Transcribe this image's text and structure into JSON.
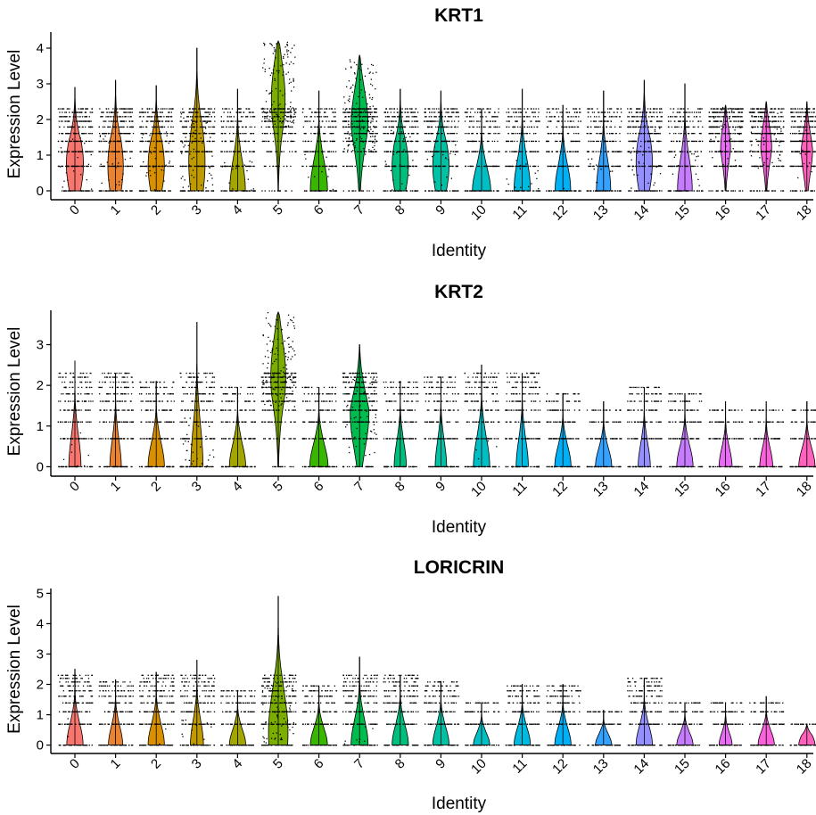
{
  "colors": [
    "#F8766D",
    "#EA8331",
    "#D89000",
    "#C09B00",
    "#A3A500",
    "#7CAE00",
    "#39B600",
    "#00BB4E",
    "#00BF7D",
    "#00C1A3",
    "#00BFC4",
    "#00BAE0",
    "#00B0F6",
    "#35A2FF",
    "#9590FF",
    "#C77CFF",
    "#E76BF3",
    "#FA62DB",
    "#FF62BC"
  ],
  "chart_data": [
    {
      "type": "violin",
      "title": "KRT1",
      "xlabel": "Identity",
      "ylabel": "Expression Level",
      "categories": [
        "0",
        "1",
        "2",
        "3",
        "4",
        "5",
        "6",
        "7",
        "8",
        "9",
        "10",
        "11",
        "12",
        "13",
        "14",
        "15",
        "16",
        "17",
        "18"
      ],
      "yticks": [
        "0",
        "1",
        "2",
        "3",
        "4"
      ],
      "ylim": [
        -0.1,
        4.4
      ],
      "series": [
        {
          "category": "0",
          "max": 2.9,
          "mode": 0.75,
          "min": 0.0,
          "spread": 0.42
        },
        {
          "category": "1",
          "max": 3.1,
          "mode": 0.7,
          "min": 0.0,
          "spread": 0.38
        },
        {
          "category": "2",
          "max": 2.95,
          "mode": 0.7,
          "min": 0.0,
          "spread": 0.4
        },
        {
          "category": "3",
          "max": 4.0,
          "mode": 0.8,
          "min": 0.0,
          "spread": 0.4
        },
        {
          "category": "4",
          "max": 2.85,
          "mode": 0.05,
          "min": 0.0,
          "spread": 0.38
        },
        {
          "category": "5",
          "max": 4.2,
          "mode": 3.25,
          "min": 0.0,
          "spread": 0.52
        },
        {
          "category": "6",
          "max": 2.8,
          "mode": 0.05,
          "min": 0.0,
          "spread": 0.42
        },
        {
          "category": "7",
          "max": 3.8,
          "mode": 2.35,
          "min": 0.0,
          "spread": 0.48
        },
        {
          "category": "8",
          "max": 2.85,
          "mode": 0.7,
          "min": 0.0,
          "spread": 0.4
        },
        {
          "category": "9",
          "max": 2.8,
          "mode": 0.7,
          "min": 0.0,
          "spread": 0.4
        },
        {
          "category": "10",
          "max": 2.3,
          "mode": 0.0,
          "min": 0.0,
          "spread": 0.45
        },
        {
          "category": "11",
          "max": 2.85,
          "mode": 0.05,
          "min": 0.0,
          "spread": 0.4
        },
        {
          "category": "12",
          "max": 2.4,
          "mode": 0.05,
          "min": 0.0,
          "spread": 0.38
        },
        {
          "category": "13",
          "max": 2.8,
          "mode": 0.05,
          "min": 0.0,
          "spread": 0.35
        },
        {
          "category": "14",
          "max": 3.1,
          "mode": 0.8,
          "min": 0.0,
          "spread": 0.4
        },
        {
          "category": "15",
          "max": 3.0,
          "mode": 0.05,
          "min": 0.0,
          "spread": 0.36
        },
        {
          "category": "16",
          "max": 2.4,
          "mode": 1.5,
          "min": 0.0,
          "spread": 0.28
        },
        {
          "category": "17",
          "max": 2.5,
          "mode": 1.5,
          "min": 0.0,
          "spread": 0.3
        },
        {
          "category": "18",
          "max": 2.5,
          "mode": 1.2,
          "min": 0.0,
          "spread": 0.28
        }
      ]
    },
    {
      "type": "violin",
      "title": "KRT2",
      "xlabel": "Identity",
      "ylabel": "Expression Level",
      "categories": [
        "0",
        "1",
        "2",
        "3",
        "4",
        "5",
        "6",
        "7",
        "8",
        "9",
        "10",
        "11",
        "12",
        "13",
        "14",
        "15",
        "16",
        "17",
        "18"
      ],
      "yticks": [
        "0",
        "1",
        "2",
        "3"
      ],
      "ylim": [
        -0.1,
        3.8
      ],
      "series": [
        {
          "category": "0",
          "max": 2.6,
          "mode": 0.0,
          "min": 0.0,
          "spread": 0.3
        },
        {
          "category": "1",
          "max": 2.3,
          "mode": 0.0,
          "min": 0.0,
          "spread": 0.28
        },
        {
          "category": "2",
          "max": 2.1,
          "mode": 0.0,
          "min": 0.0,
          "spread": 0.4
        },
        {
          "category": "3",
          "max": 3.55,
          "mode": 0.0,
          "min": 0.0,
          "spread": 0.3
        },
        {
          "category": "4",
          "max": 1.95,
          "mode": 0.0,
          "min": 0.0,
          "spread": 0.4
        },
        {
          "category": "5",
          "max": 3.8,
          "mode": 2.8,
          "min": 0.0,
          "spread": 0.52
        },
        {
          "category": "6",
          "max": 1.95,
          "mode": 0.0,
          "min": 0.0,
          "spread": 0.45
        },
        {
          "category": "7",
          "max": 3.0,
          "mode": 1.3,
          "min": 0.0,
          "spread": 0.46
        },
        {
          "category": "8",
          "max": 2.1,
          "mode": 0.0,
          "min": 0.0,
          "spread": 0.3
        },
        {
          "category": "9",
          "max": 2.2,
          "mode": 0.0,
          "min": 0.0,
          "spread": 0.28
        },
        {
          "category": "10",
          "max": 2.5,
          "mode": 0.0,
          "min": 0.0,
          "spread": 0.4
        },
        {
          "category": "11",
          "max": 2.3,
          "mode": 0.0,
          "min": 0.0,
          "spread": 0.3
        },
        {
          "category": "12",
          "max": 1.8,
          "mode": 0.0,
          "min": 0.0,
          "spread": 0.4
        },
        {
          "category": "13",
          "max": 1.6,
          "mode": 0.0,
          "min": 0.0,
          "spread": 0.4
        },
        {
          "category": "14",
          "max": 1.95,
          "mode": 0.0,
          "min": 0.0,
          "spread": 0.3
        },
        {
          "category": "15",
          "max": 1.8,
          "mode": 0.0,
          "min": 0.0,
          "spread": 0.4
        },
        {
          "category": "16",
          "max": 1.6,
          "mode": 0.0,
          "min": 0.0,
          "spread": 0.32
        },
        {
          "category": "17",
          "max": 1.6,
          "mode": 0.0,
          "min": 0.0,
          "spread": 0.32
        },
        {
          "category": "18",
          "max": 1.6,
          "mode": 0.0,
          "min": 0.0,
          "spread": 0.4
        }
      ]
    },
    {
      "type": "violin",
      "title": "LORICRIN",
      "xlabel": "Identity",
      "ylabel": "Expression Level",
      "categories": [
        "0",
        "1",
        "2",
        "3",
        "4",
        "5",
        "6",
        "7",
        "8",
        "9",
        "10",
        "11",
        "12",
        "13",
        "14",
        "15",
        "16",
        "17",
        "18"
      ],
      "yticks": [
        "0",
        "1",
        "2",
        "3",
        "4",
        "5"
      ],
      "ylim": [
        -0.1,
        5.1
      ],
      "series": [
        {
          "category": "0",
          "max": 2.5,
          "mode": 0.0,
          "min": 0.0,
          "spread": 0.4
        },
        {
          "category": "1",
          "max": 2.15,
          "mode": 0.0,
          "min": 0.0,
          "spread": 0.35
        },
        {
          "category": "2",
          "max": 2.4,
          "mode": 0.0,
          "min": 0.0,
          "spread": 0.4
        },
        {
          "category": "3",
          "max": 2.8,
          "mode": 0.0,
          "min": 0.0,
          "spread": 0.32
        },
        {
          "category": "4",
          "max": 1.8,
          "mode": 0.0,
          "min": 0.0,
          "spread": 0.4
        },
        {
          "category": "5",
          "max": 4.9,
          "mode": 0.4,
          "min": 0.0,
          "spread": 0.48
        },
        {
          "category": "6",
          "max": 1.95,
          "mode": 0.0,
          "min": 0.0,
          "spread": 0.42
        },
        {
          "category": "7",
          "max": 2.9,
          "mode": 0.0,
          "min": 0.0,
          "spread": 0.42
        },
        {
          "category": "8",
          "max": 2.3,
          "mode": 0.0,
          "min": 0.0,
          "spread": 0.4
        },
        {
          "category": "9",
          "max": 2.1,
          "mode": 0.0,
          "min": 0.0,
          "spread": 0.4
        },
        {
          "category": "10",
          "max": 1.4,
          "mode": 0.0,
          "min": 0.0,
          "spread": 0.4
        },
        {
          "category": "11",
          "max": 2.0,
          "mode": 0.0,
          "min": 0.0,
          "spread": 0.4
        },
        {
          "category": "12",
          "max": 2.0,
          "mode": 0.0,
          "min": 0.0,
          "spread": 0.4
        },
        {
          "category": "13",
          "max": 1.15,
          "mode": 0.0,
          "min": 0.0,
          "spread": 0.4
        },
        {
          "category": "14",
          "max": 2.2,
          "mode": 0.0,
          "min": 0.0,
          "spread": 0.4
        },
        {
          "category": "15",
          "max": 1.4,
          "mode": 0.0,
          "min": 0.0,
          "spread": 0.4
        },
        {
          "category": "16",
          "max": 1.4,
          "mode": 0.0,
          "min": 0.0,
          "spread": 0.32
        },
        {
          "category": "17",
          "max": 1.6,
          "mode": 0.0,
          "min": 0.0,
          "spread": 0.4
        },
        {
          "category": "18",
          "max": 0.7,
          "mode": 0.0,
          "min": 0.0,
          "spread": 0.4
        }
      ]
    }
  ]
}
